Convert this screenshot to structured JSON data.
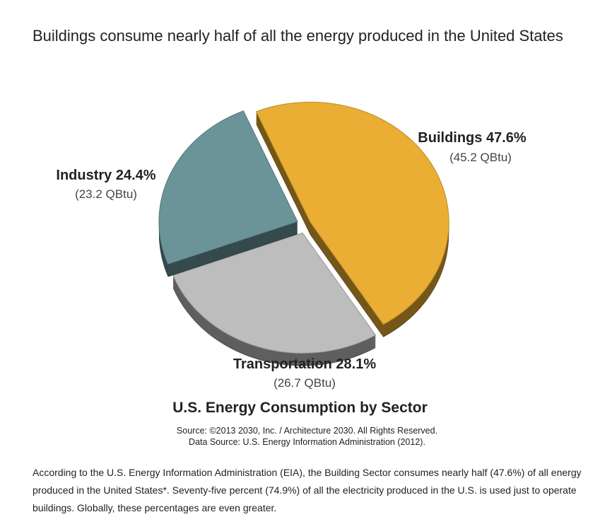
{
  "headline": "Buildings consume nearly half of all the energy produced in the United States",
  "chart_data": {
    "type": "pie",
    "title": "U.S. Energy Consumption by Sector",
    "slices": [
      {
        "name": "Buildings",
        "percent_label": "47.6%",
        "value": 47.6,
        "qbtu_label": "(45.2 QBtu)",
        "color": "#E9AE33"
      },
      {
        "name": "Transportation",
        "percent_label": "28.1%",
        "value": 28.1,
        "qbtu_label": "(26.7 QBtu)",
        "color": "#BDBDBD"
      },
      {
        "name": "Industry",
        "percent_label": "24.4%",
        "value": 24.4,
        "qbtu_label": "(23.2 QBtu)",
        "color": "#6A9497"
      }
    ]
  },
  "source_line": "Source: ©2013 2030, Inc. / Architecture 2030. All Rights Reserved.",
  "data_source_line": "Data Source: U.S. Energy Information Administration (2012).",
  "body_text": "According to the U.S. Energy Information Administration (EIA), the Building Sector consumes nearly half (47.6%) of all energy produced in the United States*. Seventy-five percent (74.9%) of all the electricity produced in the U.S. is used just to operate buildings. Globally, these percentages are even greater."
}
